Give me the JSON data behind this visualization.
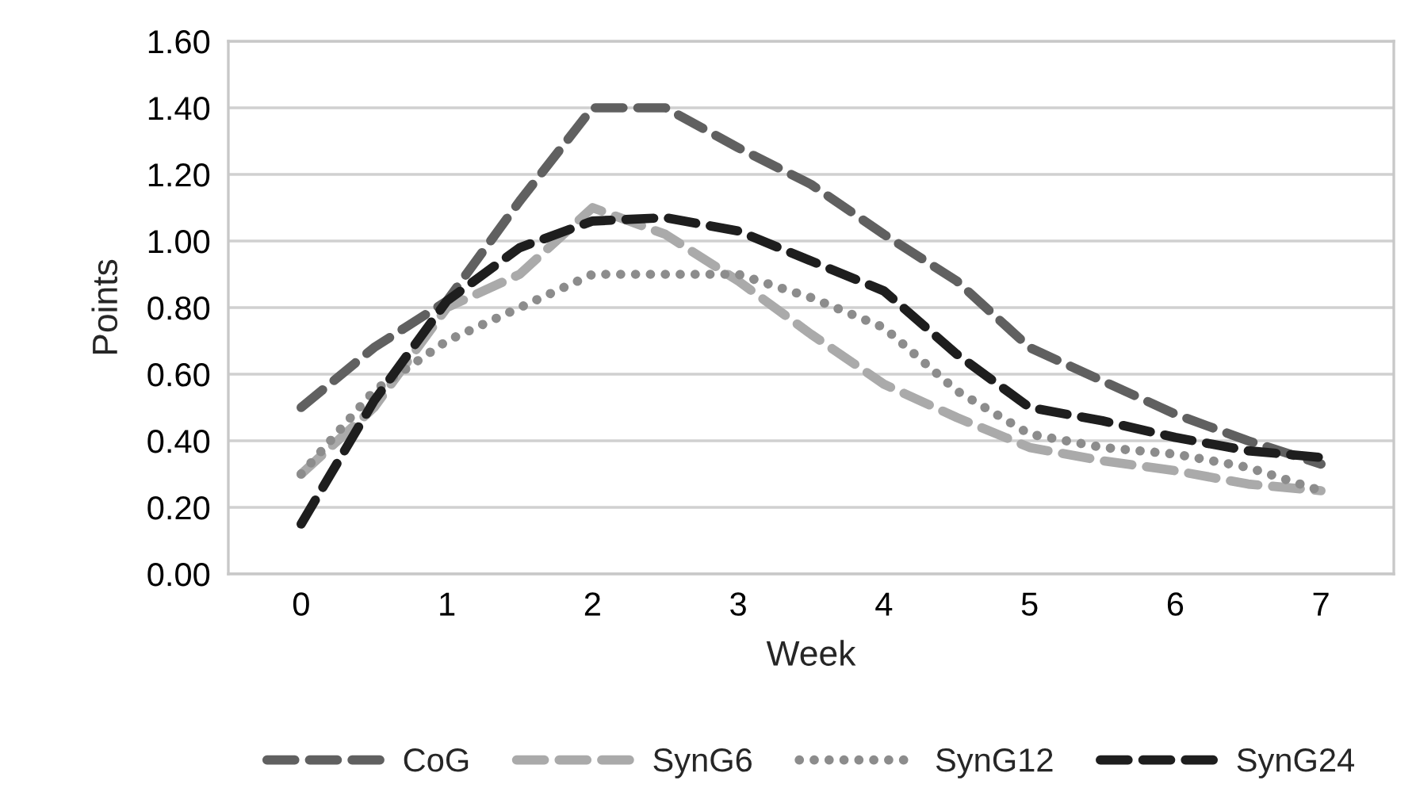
{
  "chart_data": {
    "type": "line",
    "xlabel": "Week",
    "ylabel": "Points",
    "x": [
      0,
      0.5,
      1,
      1.5,
      2,
      2.5,
      3,
      3.5,
      4,
      4.5,
      5,
      5.5,
      6,
      6.5,
      7
    ],
    "series": [
      {
        "name": "CoG",
        "color": "#606060",
        "line_style": "dashed",
        "values": [
          0.5,
          0.68,
          0.82,
          1.12,
          1.4,
          1.4,
          1.28,
          1.17,
          1.02,
          0.88,
          0.68,
          0.58,
          0.48,
          0.4,
          0.33
        ]
      },
      {
        "name": "SynG6",
        "color": "#aaaaaa",
        "line_style": "dashed",
        "values": [
          0.3,
          0.5,
          0.8,
          0.9,
          1.1,
          1.02,
          0.88,
          0.72,
          0.57,
          0.47,
          0.38,
          0.34,
          0.31,
          0.27,
          0.25
        ]
      },
      {
        "name": "SynG12",
        "color": "#8c8c8c",
        "line_style": "dotted",
        "values": [
          0.3,
          0.55,
          0.7,
          0.8,
          0.9,
          0.9,
          0.9,
          0.83,
          0.74,
          0.55,
          0.42,
          0.38,
          0.36,
          0.32,
          0.25
        ]
      },
      {
        "name": "SynG24",
        "color": "#1e1e1e",
        "line_style": "dashed",
        "values": [
          0.15,
          0.52,
          0.82,
          0.98,
          1.06,
          1.07,
          1.03,
          0.94,
          0.85,
          0.66,
          0.5,
          0.46,
          0.41,
          0.37,
          0.35
        ]
      }
    ],
    "xlim": [
      -0.5,
      7.5
    ],
    "xticks": [
      0,
      1,
      2,
      3,
      4,
      5,
      6,
      7
    ],
    "ylim": [
      0,
      1.6
    ],
    "yticks": [
      {
        "value": 0,
        "label": "0.00"
      },
      {
        "value": 0.2,
        "label": "0.20"
      },
      {
        "value": 0.4,
        "label": "0.40"
      },
      {
        "value": 0.6,
        "label": "0.60"
      },
      {
        "value": 0.8,
        "label": "0.80"
      },
      {
        "value": 1.0,
        "label": "1.00"
      },
      {
        "value": 1.2,
        "label": "1.20"
      },
      {
        "value": 1.4,
        "label": "1.40"
      },
      {
        "value": 1.6,
        "label": "1.60"
      }
    ],
    "grid": "y",
    "legend": "bottom"
  }
}
